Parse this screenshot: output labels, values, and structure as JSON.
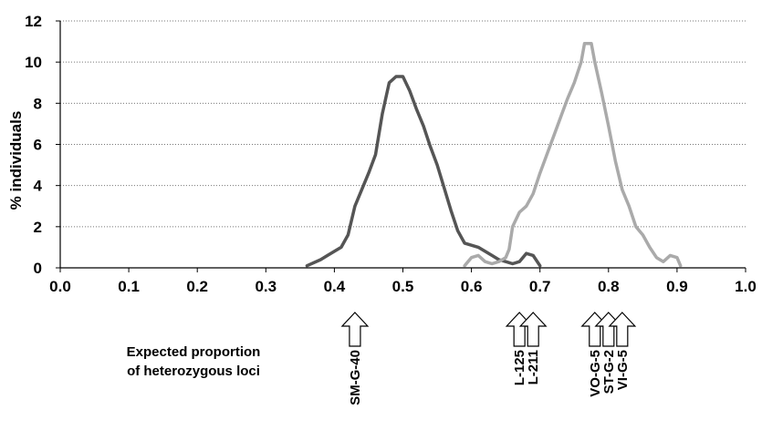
{
  "chart_data": {
    "type": "line",
    "xlabel_lines": [
      "Expected proportion",
      "of heterozygous loci"
    ],
    "ylabel": "% individuals",
    "xlim": [
      0.0,
      1.0
    ],
    "ylim": [
      0,
      12
    ],
    "xticks": [
      "0.0",
      "0.1",
      "0.2",
      "0.3",
      "0.4",
      "0.5",
      "0.6",
      "0.7",
      "0.8",
      "0.9",
      "1.0"
    ],
    "yticks": [
      "0",
      "2",
      "4",
      "6",
      "8",
      "10",
      "12"
    ],
    "grid": "horizontal",
    "series": [
      {
        "color": "#555555",
        "points": [
          [
            0.36,
            0.1
          ],
          [
            0.38,
            0.4
          ],
          [
            0.39,
            0.6
          ],
          [
            0.4,
            0.8
          ],
          [
            0.41,
            1.0
          ],
          [
            0.42,
            1.6
          ],
          [
            0.43,
            3.0
          ],
          [
            0.44,
            3.8
          ],
          [
            0.45,
            4.6
          ],
          [
            0.46,
            5.5
          ],
          [
            0.47,
            7.5
          ],
          [
            0.48,
            9.0
          ],
          [
            0.49,
            9.3
          ],
          [
            0.5,
            9.3
          ],
          [
            0.51,
            8.6
          ],
          [
            0.52,
            7.7
          ],
          [
            0.53,
            6.9
          ],
          [
            0.54,
            5.9
          ],
          [
            0.55,
            5.0
          ],
          [
            0.56,
            3.9
          ],
          [
            0.57,
            2.8
          ],
          [
            0.58,
            1.8
          ],
          [
            0.59,
            1.2
          ],
          [
            0.6,
            1.1
          ],
          [
            0.61,
            1.0
          ],
          [
            0.62,
            0.8
          ],
          [
            0.63,
            0.6
          ],
          [
            0.64,
            0.4
          ],
          [
            0.65,
            0.3
          ],
          [
            0.66,
            0.2
          ],
          [
            0.67,
            0.3
          ],
          [
            0.68,
            0.7
          ],
          [
            0.69,
            0.6
          ],
          [
            0.7,
            0.1
          ]
        ]
      },
      {
        "color": "#aaaaaa",
        "points": [
          [
            0.59,
            0.1
          ],
          [
            0.6,
            0.5
          ],
          [
            0.61,
            0.6
          ],
          [
            0.62,
            0.3
          ],
          [
            0.63,
            0.2
          ],
          [
            0.64,
            0.3
          ],
          [
            0.65,
            0.5
          ],
          [
            0.655,
            0.9
          ],
          [
            0.66,
            2.0
          ],
          [
            0.67,
            2.7
          ],
          [
            0.68,
            3.0
          ],
          [
            0.69,
            3.6
          ],
          [
            0.7,
            4.6
          ],
          [
            0.71,
            5.5
          ],
          [
            0.72,
            6.4
          ],
          [
            0.73,
            7.3
          ],
          [
            0.74,
            8.2
          ],
          [
            0.75,
            9.0
          ],
          [
            0.76,
            10.0
          ],
          [
            0.765,
            10.9
          ],
          [
            0.775,
            10.9
          ],
          [
            0.78,
            10.0
          ],
          [
            0.79,
            8.5
          ],
          [
            0.8,
            6.9
          ],
          [
            0.81,
            5.2
          ],
          [
            0.82,
            3.8
          ],
          [
            0.83,
            3.0
          ],
          [
            0.84,
            2.0
          ],
          [
            0.85,
            1.6
          ],
          [
            0.86,
            1.0
          ],
          [
            0.87,
            0.5
          ],
          [
            0.88,
            0.3
          ],
          [
            0.89,
            0.6
          ],
          [
            0.9,
            0.5
          ],
          [
            0.905,
            0.1
          ]
        ]
      }
    ],
    "markers": [
      {
        "label": "SM-G-40",
        "x": 0.43
      },
      {
        "label": "L-125",
        "x": 0.67
      },
      {
        "label": "L-211",
        "x": 0.69
      },
      {
        "label": "VO-G-5",
        "x": 0.78
      },
      {
        "label": "ST-G-2",
        "x": 0.8
      },
      {
        "label": "VI-G-5",
        "x": 0.82
      }
    ]
  }
}
